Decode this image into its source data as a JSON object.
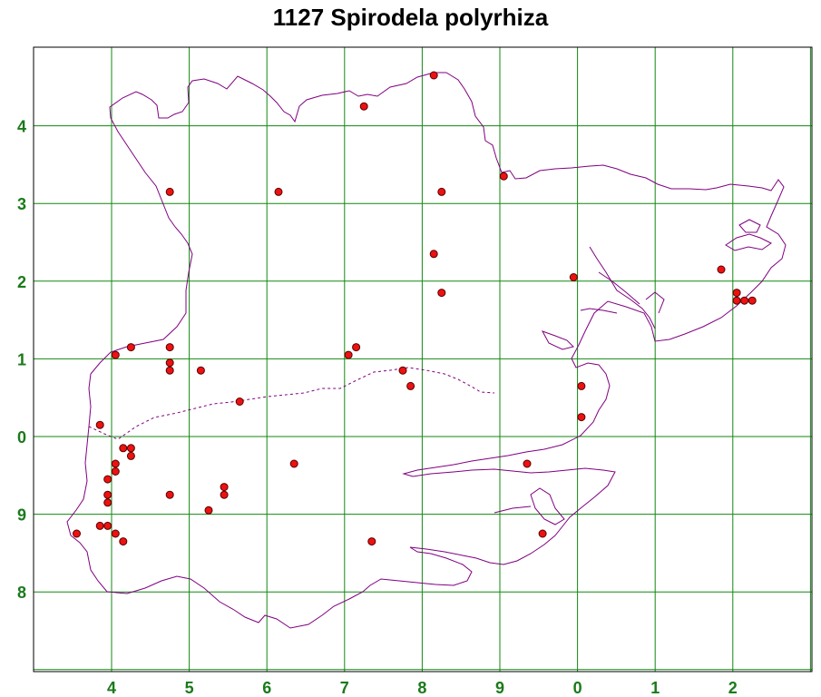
{
  "title": "1127 Spirodela polyrhiza",
  "colors": {
    "grid": "#118811",
    "frame": "#000000",
    "coast": "#800080",
    "boundary": "#800080",
    "dot_fill": "#ee1111",
    "dot_stroke": "#550000",
    "tick_label": "#1a7a1a"
  },
  "x_tick_labels": [
    "4",
    "5",
    "6",
    "7",
    "8",
    "9",
    "0",
    "1",
    "2"
  ],
  "y_tick_labels": [
    "4",
    "3",
    "2",
    "1",
    "0",
    "9",
    "8"
  ],
  "grid": {
    "columns": 10,
    "rows": 8,
    "unit_km": 10
  },
  "records": [
    [
      8.15,
      4.65
    ],
    [
      7.25,
      4.25
    ],
    [
      9.05,
      3.35
    ],
    [
      4.75,
      3.15
    ],
    [
      6.15,
      3.15
    ],
    [
      8.25,
      3.15
    ],
    [
      8.15,
      2.35
    ],
    [
      9.95,
      2.05
    ],
    [
      11.85,
      2.15
    ],
    [
      8.25,
      1.85
    ],
    [
      12.05,
      1.85
    ],
    [
      12.05,
      1.75
    ],
    [
      12.15,
      1.75
    ],
    [
      12.25,
      1.75
    ],
    [
      4.05,
      1.05
    ],
    [
      4.25,
      1.15
    ],
    [
      4.75,
      1.15
    ],
    [
      7.05,
      1.05
    ],
    [
      7.15,
      1.15
    ],
    [
      4.75,
      0.95
    ],
    [
      4.75,
      0.85
    ],
    [
      5.15,
      0.85
    ],
    [
      7.75,
      0.85
    ],
    [
      7.85,
      0.65
    ],
    [
      10.05,
      0.65
    ],
    [
      5.65,
      0.45
    ],
    [
      10.05,
      0.25
    ],
    [
      3.85,
      0.15
    ],
    [
      4.15,
      -0.15
    ],
    [
      4.25,
      -0.15
    ],
    [
      4.25,
      -0.25
    ],
    [
      4.05,
      -0.35
    ],
    [
      4.05,
      -0.45
    ],
    [
      6.35,
      -0.35
    ],
    [
      9.35,
      -0.35
    ],
    [
      3.95,
      -0.55
    ],
    [
      5.45,
      -0.65
    ],
    [
      5.45,
      -0.75
    ],
    [
      3.95,
      -0.75
    ],
    [
      4.75,
      -0.75
    ],
    [
      3.95,
      -0.85
    ],
    [
      5.25,
      -0.95
    ],
    [
      3.85,
      -1.15
    ],
    [
      3.95,
      -1.15
    ],
    [
      3.55,
      -1.25
    ],
    [
      4.05,
      -1.25
    ],
    [
      4.15,
      -1.35
    ],
    [
      7.35,
      -1.35
    ],
    [
      9.55,
      -1.25
    ]
  ]
}
